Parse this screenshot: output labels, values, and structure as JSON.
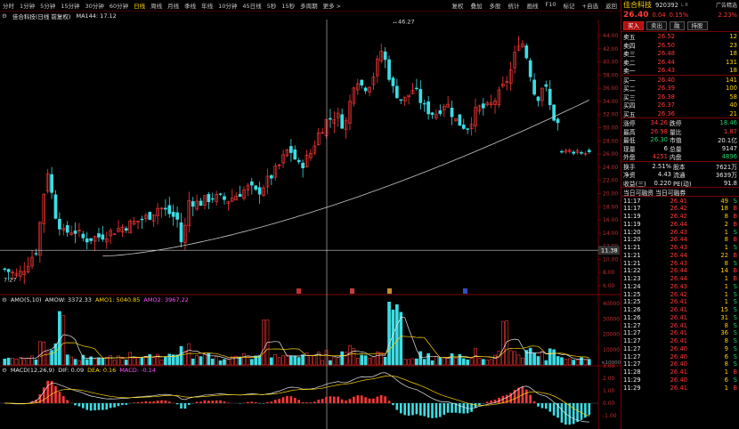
{
  "toolbar": {
    "periods": [
      "分时",
      "1分钟",
      "5分钟",
      "15分钟",
      "30分钟",
      "60分钟",
      "日线",
      "周线",
      "月线",
      "季线",
      "年线",
      "10分钟",
      "45日线",
      "5秒",
      "15秒",
      "多周期",
      "更多 >"
    ],
    "active_period": "日线",
    "right_items": [
      "复权",
      "叠加",
      "多股",
      "统计",
      "画线",
      "F10",
      "标记",
      "+自选",
      "返回"
    ]
  },
  "info": {
    "stock": "佳合科技(日线 前复权)",
    "ma": "MA144: 17.12"
  },
  "price_axis": [
    "44.00",
    "42.00",
    "40.00",
    "38.00",
    "36.00",
    "34.00",
    "32.00",
    "30.00",
    "28.00",
    "26.00",
    "24.00",
    "22.00",
    "20.00",
    "18.00",
    "16.00",
    "14.00",
    "12.00",
    "10.00",
    "8.00",
    "6.00"
  ],
  "labels": {
    "high_mark": "46.27",
    "low_mark": "7.27",
    "cursor_price": "11.38"
  },
  "amo": {
    "title": "AMO(5,10)",
    "amow_label": "AMOW:",
    "amow": "3372.33",
    "amo1_label": "AMO1:",
    "amo1": "5040.85",
    "amo2_label": "AMO2:",
    "amo2": "3967.22",
    "axis": [
      "40000",
      "30000",
      "20000",
      "10000"
    ],
    "axis_unit": "×10000"
  },
  "macd": {
    "title": "MACD(12,26,9)",
    "dif_label": "DIF:",
    "dif": "0.09",
    "dea_label": "DEA:",
    "dea": "0.16",
    "macd_label": "MACD:",
    "macd": "-0.14",
    "axis": [
      "3.00",
      "2.00",
      "1.00",
      "0.00",
      "-1.00"
    ]
  },
  "side": {
    "name": "佳合科技",
    "code": "920392",
    "flag": "L R",
    "ad_label": "广告精选",
    "ad_pct": "2.23%",
    "price": "26.40",
    "change": "0.04",
    "change_pct": "0.15%",
    "buttons": [
      "买入",
      "卖出",
      "融",
      "持股"
    ],
    "asks": [
      {
        "label": "卖五",
        "price": "26.52",
        "vol": "12"
      },
      {
        "label": "卖四",
        "price": "26.50",
        "vol": "23"
      },
      {
        "label": "卖三",
        "price": "26.48",
        "vol": "18"
      },
      {
        "label": "卖二",
        "price": "26.44",
        "vol": "131"
      },
      {
        "label": "卖一",
        "price": "26.43",
        "vol": "18"
      }
    ],
    "bids": [
      {
        "label": "买一",
        "price": "26.40",
        "vol": "141"
      },
      {
        "label": "买二",
        "price": "26.39",
        "vol": "100"
      },
      {
        "label": "买三",
        "price": "26.38",
        "vol": "58"
      },
      {
        "label": "买四",
        "price": "26.37",
        "vol": "40"
      },
      {
        "label": "买五",
        "price": "26.36",
        "vol": "21"
      }
    ],
    "stats": [
      {
        "l1": "涨停",
        "v1": "34.26",
        "l2": "跌停",
        "v2": "18.46",
        "c1": "red",
        "c2": "green"
      },
      {
        "l1": "最高",
        "v1": "26.98",
        "l2": "量比",
        "v2": "1.87",
        "c1": "red",
        "c2": "red"
      },
      {
        "l1": "最低",
        "v1": "26.30",
        "l2": "市值",
        "v2": "20.1亿",
        "c1": "green",
        "c2": "white"
      },
      {
        "l1": "现量",
        "v1": "6",
        "l2": "总量",
        "v2": "9147",
        "c1": "white",
        "c2": "white"
      },
      {
        "l1": "外盘",
        "v1": "4251",
        "l2": "内盘",
        "v2": "4896",
        "c1": "red",
        "c2": "green"
      }
    ],
    "stats2": [
      {
        "l1": "换手",
        "v1": "2.51%",
        "l2": "股本",
        "v2": "7621万"
      },
      {
        "l1": "净资",
        "v1": "4.43",
        "l2": "流通",
        "v2": "3639万"
      },
      {
        "l1": "收益(三)",
        "v1": "0.220",
        "l2": "PE(动)",
        "v2": "91.8"
      }
    ],
    "margin_header": "当日可融资  当日可融券",
    "ticks": [
      {
        "t": "11:17",
        "p": "26.41",
        "v": "49",
        "d": "S"
      },
      {
        "t": "11:17",
        "p": "26.42",
        "v": "18",
        "d": "B"
      },
      {
        "t": "11:19",
        "p": "26.42",
        "v": "8",
        "d": "B"
      },
      {
        "t": "11:19",
        "p": "26.44",
        "v": "2",
        "d": "B"
      },
      {
        "t": "11:20",
        "p": "26.43",
        "v": "1",
        "d": "S"
      },
      {
        "t": "11:20",
        "p": "26.44",
        "v": "8",
        "d": "B"
      },
      {
        "t": "11:21",
        "p": "26.43",
        "v": "1",
        "d": "S"
      },
      {
        "t": "11:21",
        "p": "26.44",
        "v": "22",
        "d": "B"
      },
      {
        "t": "11:21",
        "p": "26.43",
        "v": "8",
        "d": "S"
      },
      {
        "t": "11:22",
        "p": "26.44",
        "v": "14",
        "d": "B"
      },
      {
        "t": "11:23",
        "p": "26.44",
        "v": "1",
        "d": "B"
      },
      {
        "t": "11:24",
        "p": "26.43",
        "v": "1",
        "d": "S"
      },
      {
        "t": "11:25",
        "p": "26.42",
        "v": "1",
        "d": "S"
      },
      {
        "t": "11:25",
        "p": "26.41",
        "v": "1",
        "d": "S"
      },
      {
        "t": "11:26",
        "p": "26.41",
        "v": "15",
        "d": "S"
      },
      {
        "t": "11:26",
        "p": "26.41",
        "v": "31",
        "d": "S"
      },
      {
        "t": "11:27",
        "p": "26.41",
        "v": "8",
        "d": "S"
      },
      {
        "t": "11:27",
        "p": "26.41",
        "v": "36",
        "d": "S"
      },
      {
        "t": "11:27",
        "p": "26.41",
        "v": "8",
        "d": "S"
      },
      {
        "t": "11:27",
        "p": "26.40",
        "v": "9",
        "d": "S"
      },
      {
        "t": "11:27",
        "p": "26.40",
        "v": "6",
        "d": "S"
      },
      {
        "t": "11:27",
        "p": "26.40",
        "v": "8",
        "d": "S"
      },
      {
        "t": "11:28",
        "p": "26.41",
        "v": "1",
        "d": "B"
      },
      {
        "t": "11:29",
        "p": "26.40",
        "v": "6",
        "d": "S"
      },
      {
        "t": "11:29",
        "p": "26.41",
        "v": "1",
        "d": "B"
      }
    ]
  },
  "colors": {
    "up": "#ff3838",
    "down": "#3ddde4",
    "ma": "#c8c8c8",
    "border": "#7a0000"
  }
}
